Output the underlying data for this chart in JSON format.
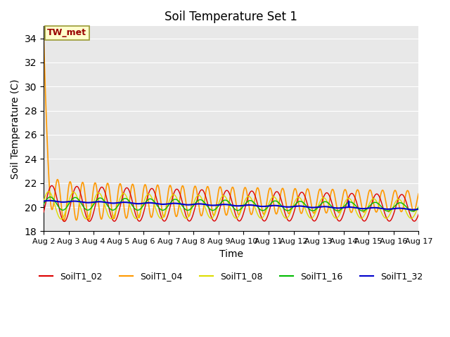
{
  "title": "Soil Temperature Set 1",
  "xlabel": "Time",
  "ylabel": "Soil Temperature (C)",
  "ylim": [
    18,
    35
  ],
  "yticks": [
    18,
    20,
    22,
    24,
    26,
    28,
    30,
    32,
    34
  ],
  "background_color": "#e8e8e8",
  "annotation_text": "TW_met",
  "annotation_color": "#990000",
  "annotation_bg": "#ffffcc",
  "annotation_edge": "#999933",
  "series_order": [
    "SoilT1_04",
    "SoilT1_02",
    "SoilT1_08",
    "SoilT1_16",
    "SoilT1_32"
  ],
  "series": {
    "SoilT1_02": {
      "color": "#dd0000",
      "lw": 1.0
    },
    "SoilT1_04": {
      "color": "#ff9900",
      "lw": 1.2
    },
    "SoilT1_08": {
      "color": "#dddd00",
      "lw": 1.0
    },
    "SoilT1_16": {
      "color": "#00bb00",
      "lw": 1.0
    },
    "SoilT1_32": {
      "color": "#0000cc",
      "lw": 1.5
    }
  },
  "xtick_labels": [
    "Aug 2",
    "Aug 3",
    "Aug 4",
    "Aug 5",
    "Aug 6",
    "Aug 7",
    "Aug 8",
    "Aug 9",
    "Aug 10",
    "Aug 11",
    "Aug 12",
    "Aug 13",
    "Aug 14",
    "Aug 15",
    "Aug 16",
    "Aug 17"
  ],
  "n_days": 15,
  "points_per_day": 96
}
